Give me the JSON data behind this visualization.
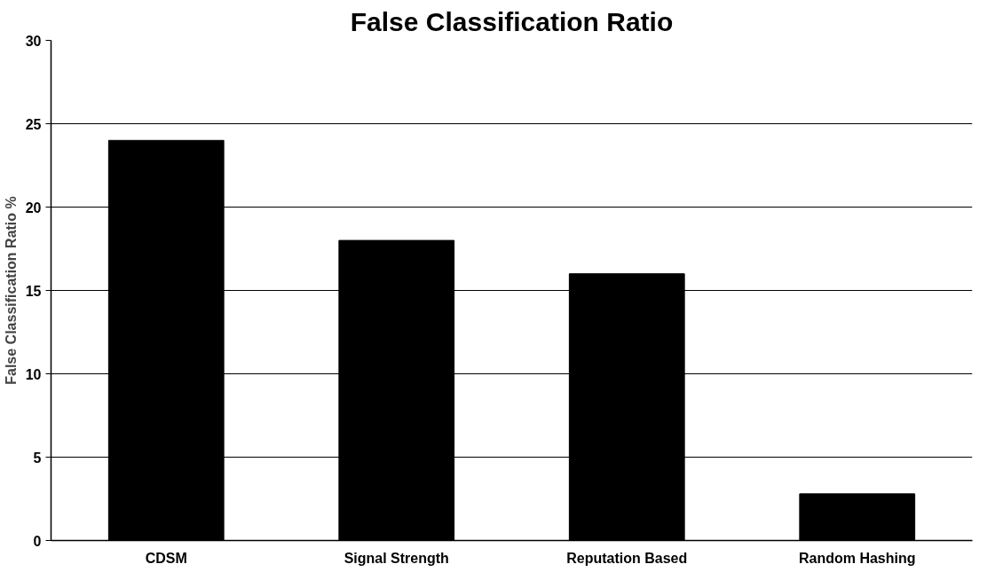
{
  "chart_data": {
    "type": "bar",
    "title": "False Classification Ratio",
    "ylabel": "False Classification Ratio %",
    "categories": [
      "CDSM",
      "Signal Strength",
      "Reputation Based",
      "Random Hashing"
    ],
    "values": [
      24,
      18,
      16,
      2.8
    ],
    "color": "#000000",
    "ylim": [
      0,
      30
    ],
    "yticks": [
      0,
      5,
      10,
      15,
      20,
      25,
      30
    ],
    "grid": "y"
  }
}
